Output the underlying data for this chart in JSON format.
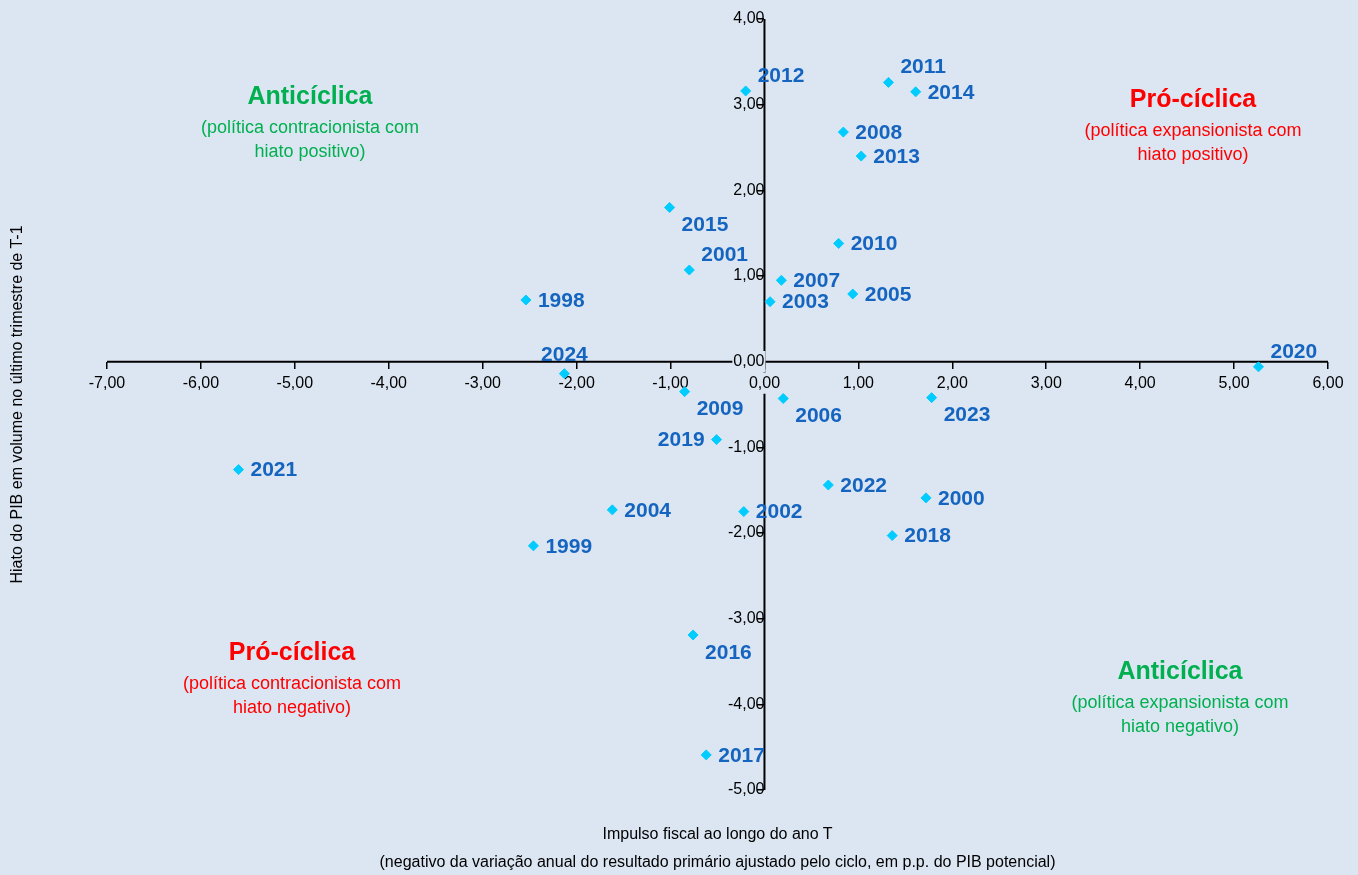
{
  "chart_data": {
    "type": "scatter",
    "xlabel": "Impulso fiscal ao longo do ano T\n(negativo da variação anual do resultado primário ajustado pelo ciclo, em p.p. do PIB potencial)",
    "ylabel": "Hiato do PIB em volume no último trimestre de T-1",
    "series": [
      {
        "name": "1998",
        "color": "#00ccff",
        "x": [
          -2.54
        ],
        "values": [
          0.72
        ]
      },
      {
        "name": "1999",
        "color": "#00ccff",
        "x": [
          -2.46
        ],
        "values": [
          -2.15
        ]
      },
      {
        "name": "2000",
        "color": "#00ccff",
        "x": [
          1.72
        ],
        "values": [
          -1.59
        ]
      },
      {
        "name": "2001",
        "color": "#00ccff",
        "x": [
          -0.8
        ],
        "values": [
          1.07
        ]
      },
      {
        "name": "2002",
        "color": "#00ccff",
        "x": [
          -0.22
        ],
        "values": [
          -1.75
        ]
      },
      {
        "name": "2003",
        "color": "#00ccff",
        "x": [
          0.06
        ],
        "values": [
          0.7
        ]
      },
      {
        "name": "2004",
        "color": "#00ccff",
        "x": [
          -1.62
        ],
        "values": [
          -1.73
        ]
      },
      {
        "name": "2005",
        "color": "#00ccff",
        "x": [
          0.94
        ],
        "values": [
          0.79
        ]
      },
      {
        "name": "2006",
        "color": "#00ccff",
        "x": [
          0.2
        ],
        "values": [
          -0.43
        ]
      },
      {
        "name": "2007",
        "color": "#00ccff",
        "x": [
          0.18
        ],
        "values": [
          0.95
        ]
      },
      {
        "name": "2008",
        "color": "#00ccff",
        "x": [
          0.84
        ],
        "values": [
          2.68
        ]
      },
      {
        "name": "2009",
        "color": "#00ccff",
        "x": [
          -0.85
        ],
        "values": [
          -0.35
        ]
      },
      {
        "name": "2010",
        "color": "#00ccff",
        "x": [
          0.79
        ],
        "values": [
          1.38
        ]
      },
      {
        "name": "2011",
        "color": "#00ccff",
        "x": [
          1.32
        ],
        "values": [
          3.26
        ]
      },
      {
        "name": "2012",
        "color": "#00ccff",
        "x": [
          -0.2
        ],
        "values": [
          3.16
        ]
      },
      {
        "name": "2013",
        "color": "#00ccff",
        "x": [
          1.03
        ],
        "values": [
          2.4
        ]
      },
      {
        "name": "2014",
        "color": "#00ccff",
        "x": [
          1.61
        ],
        "values": [
          3.15
        ]
      },
      {
        "name": "2015",
        "color": "#00ccff",
        "x": [
          -1.01
        ],
        "values": [
          1.8
        ]
      },
      {
        "name": "2016",
        "color": "#00ccff",
        "x": [
          -0.76
        ],
        "values": [
          -3.19
        ]
      },
      {
        "name": "2017",
        "color": "#00ccff",
        "x": [
          -0.62
        ],
        "values": [
          -4.59
        ]
      },
      {
        "name": "2018",
        "color": "#00ccff",
        "x": [
          1.36
        ],
        "values": [
          -2.03
        ]
      },
      {
        "name": "2019",
        "color": "#00ccff",
        "x": [
          -0.51
        ],
        "values": [
          -0.91
        ]
      },
      {
        "name": "2020",
        "color": "#00ccff",
        "x": [
          5.26
        ],
        "values": [
          -0.06
        ]
      },
      {
        "name": "2021",
        "color": "#00ccff",
        "x": [
          -5.6
        ],
        "values": [
          -1.26
        ]
      },
      {
        "name": "2022",
        "color": "#00ccff",
        "x": [
          0.68
        ],
        "values": [
          -1.44
        ]
      },
      {
        "name": "2023",
        "color": "#00ccff",
        "x": [
          1.78
        ],
        "values": [
          -0.42
        ]
      },
      {
        "name": "2024",
        "color": "#00ccff",
        "x": [
          -2.13
        ],
        "values": [
          -0.14
        ]
      }
    ],
    "marker": "diamond",
    "grid": false,
    "xlim": [
      -7,
      6
    ],
    "xticks": [
      {
        "value": -7,
        "label": "-7,00"
      },
      {
        "value": -6,
        "label": "-6,00"
      },
      {
        "value": -5,
        "label": "-5,00"
      },
      {
        "value": -4,
        "label": "-4,00"
      },
      {
        "value": -3,
        "label": "-3,00"
      },
      {
        "value": -2,
        "label": "-2,00"
      },
      {
        "value": -1,
        "label": "-1,00"
      },
      {
        "value": 0,
        "label": "0,00"
      },
      {
        "value": 1,
        "label": "1,00"
      },
      {
        "value": 2,
        "label": "2,00"
      },
      {
        "value": 3,
        "label": "3,00"
      },
      {
        "value": 4,
        "label": "4,00"
      },
      {
        "value": 5,
        "label": "5,00"
      },
      {
        "value": 6,
        "label": "6,00"
      }
    ],
    "ylim": [
      -5,
      4
    ],
    "yticks": [
      {
        "value": -5,
        "label": "-5,00"
      },
      {
        "value": -4,
        "label": "-4,00"
      },
      {
        "value": -3,
        "label": "-3,00"
      },
      {
        "value": -2,
        "label": "-2,00"
      },
      {
        "value": -1,
        "label": "-1,00"
      },
      {
        "value": 0,
        "label": "0,00"
      },
      {
        "value": 1,
        "label": "1,00"
      },
      {
        "value": 2,
        "label": "2,00"
      },
      {
        "value": 3,
        "label": "3,00"
      },
      {
        "value": 4,
        "label": "4,00"
      }
    ],
    "annotations": [
      "Anticíclica",
      "(política contracionista com hiato positivo)",
      "Pró-cíclica",
      "(política expansionista com hiato positivo)",
      "Pró-cíclica",
      "(política contracionista com hiato negativo)",
      "Anticíclica",
      "(política expansionista com hiato negativo)"
    ]
  }
}
